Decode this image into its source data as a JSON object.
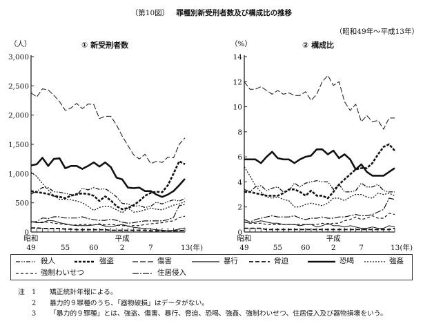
{
  "header": {
    "figure_no": "〔第10図〕",
    "title": "罪種別新受刑者数及び構成比の推移",
    "period": "（昭和49年～平成13年）"
  },
  "chart_data": [
    {
      "type": "line",
      "title": "① 新受刑者数",
      "ylabel": "（人）",
      "ylim": [
        0,
        3000
      ],
      "yticks": [
        "0",
        "500",
        "1,000",
        "1,500",
        "2,000",
        "2,500",
        "3,000"
      ],
      "ytick_values": [
        0,
        500,
        1000,
        1500,
        2000,
        2500,
        3000
      ],
      "x": [
        1974,
        1975,
        1976,
        1977,
        1978,
        1979,
        1980,
        1981,
        1982,
        1983,
        1984,
        1985,
        1986,
        1987,
        1988,
        1989,
        1990,
        1991,
        1992,
        1993,
        1994,
        1995,
        1996,
        1997,
        1998,
        1999,
        2000,
        2001
      ],
      "xtick_labels": [
        {
          "era": "昭和",
          "label": "49",
          "index": 0
        },
        {
          "era": "",
          "label": "55",
          "index": 6
        },
        {
          "era": "",
          "label": "60",
          "index": 11
        },
        {
          "era": "平成",
          "label": "2",
          "index": 16
        },
        {
          "era": "",
          "label": "7",
          "index": 21
        },
        {
          "era": "",
          "label": "13(年)",
          "index": 27
        }
      ],
      "series": [
        {
          "name": "殺人",
          "values": [
            650,
            700,
            760,
            760,
            690,
            680,
            660,
            640,
            620,
            750,
            720,
            760,
            730,
            740,
            680,
            600,
            490,
            480,
            440,
            450,
            420,
            440,
            510,
            480,
            520,
            550,
            530,
            570
          ]
        },
        {
          "name": "強盗",
          "values": [
            700,
            680,
            670,
            650,
            620,
            600,
            580,
            620,
            650,
            660,
            650,
            620,
            530,
            610,
            540,
            440,
            390,
            410,
            460,
            530,
            620,
            670,
            690,
            680,
            800,
            1000,
            1210,
            1160
          ]
        },
        {
          "name": "傷害",
          "values": [
            2380,
            2310,
            2450,
            2430,
            2340,
            2230,
            2080,
            2120,
            2200,
            2110,
            2190,
            2180,
            1940,
            1980,
            1980,
            1830,
            1640,
            1480,
            1320,
            1250,
            1330,
            1170,
            1210,
            1190,
            1280,
            1270,
            1500,
            1610
          ]
        },
        {
          "name": "暴行",
          "values": [
            180,
            160,
            160,
            200,
            190,
            160,
            140,
            120,
            110,
            110,
            110,
            120,
            130,
            100,
            90,
            110,
            130,
            100,
            80,
            70,
            60,
            50,
            40,
            30,
            20,
            30,
            50,
            70
          ]
        },
        {
          "name": "脅迫",
          "values": [
            70,
            70,
            60,
            60,
            60,
            60,
            50,
            50,
            40,
            40,
            40,
            40,
            40,
            40,
            30,
            30,
            30,
            30,
            30,
            30,
            30,
            20,
            20,
            20,
            20,
            20,
            20,
            30
          ]
        },
        {
          "name": "恐喝",
          "values": [
            1140,
            1160,
            1270,
            1130,
            1250,
            1260,
            1090,
            1130,
            1130,
            1080,
            1130,
            1190,
            1120,
            1190,
            1110,
            930,
            900,
            760,
            750,
            760,
            700,
            700,
            640,
            600,
            640,
            700,
            800,
            910
          ]
        },
        {
          "name": "強姦",
          "values": [
            1020,
            950,
            830,
            720,
            620,
            560,
            560,
            550,
            530,
            500,
            440,
            370,
            420,
            440,
            430,
            380,
            330,
            410,
            340,
            350,
            380,
            410,
            390,
            380,
            420,
            460,
            480,
            520
          ]
        },
        {
          "name": "強制わいせつ",
          "values": [
            180,
            160,
            170,
            170,
            150,
            140,
            130,
            120,
            120,
            130,
            130,
            120,
            140,
            120,
            130,
            120,
            110,
            100,
            110,
            110,
            130,
            140,
            150,
            160,
            180,
            190,
            250,
            270
          ]
        },
        {
          "name": "住居侵入",
          "values": [
            170,
            180,
            240,
            230,
            260,
            260,
            240,
            240,
            240,
            260,
            230,
            210,
            200,
            200,
            220,
            200,
            170,
            150,
            160,
            180,
            190,
            190,
            190,
            190,
            210,
            250,
            450,
            470
          ]
        }
      ]
    },
    {
      "type": "line",
      "title": "② 構成比",
      "ylabel": "（%）",
      "ylim": [
        0,
        14
      ],
      "yticks": [
        "0",
        "2",
        "4",
        "6",
        "8",
        "10",
        "12",
        "14"
      ],
      "ytick_values": [
        0,
        2,
        4,
        6,
        8,
        10,
        12,
        14
      ],
      "x": [
        1974,
        1975,
        1976,
        1977,
        1978,
        1979,
        1980,
        1981,
        1982,
        1983,
        1984,
        1985,
        1986,
        1987,
        1988,
        1989,
        1990,
        1991,
        1992,
        1993,
        1994,
        1995,
        1996,
        1997,
        1998,
        1999,
        2000,
        2001
      ],
      "xtick_labels": [
        {
          "era": "昭和",
          "label": "49",
          "index": 0
        },
        {
          "era": "",
          "label": "55",
          "index": 6
        },
        {
          "era": "",
          "label": "60",
          "index": 11
        },
        {
          "era": "平成",
          "label": "2",
          "index": 16
        },
        {
          "era": "",
          "label": "7",
          "index": 21
        },
        {
          "era": "",
          "label": "13(年)",
          "index": 27
        }
      ],
      "series": [
        {
          "name": "殺人",
          "values": [
            3.4,
            3.2,
            3.6,
            3.7,
            3.3,
            3.5,
            3.6,
            3.2,
            3.3,
            3.9,
            3.6,
            3.9,
            4.0,
            4.1,
            4.0,
            4.0,
            3.4,
            3.8,
            3.2,
            3.2,
            3.3,
            3.9,
            3.6,
            3.6,
            3.8,
            3.3,
            3.2,
            3.2
          ]
        },
        {
          "name": "強盗",
          "values": [
            3.2,
            3.2,
            3.1,
            3.0,
            2.9,
            2.9,
            2.9,
            3.1,
            3.4,
            3.4,
            3.2,
            2.9,
            3.3,
            2.9,
            2.9,
            2.7,
            3.2,
            3.8,
            4.2,
            4.6,
            5.0,
            5.1,
            5.1,
            5.5,
            6.2,
            6.8,
            7.0,
            6.5
          ]
        },
        {
          "name": "傷害",
          "values": [
            12.0,
            11.4,
            11.4,
            11.6,
            11.3,
            11.0,
            11.3,
            11.0,
            11.1,
            10.9,
            10.9,
            11.2,
            10.5,
            11.0,
            12.0,
            12.5,
            11.7,
            12.0,
            10.4,
            9.7,
            10.2,
            8.8,
            9.3,
            8.8,
            8.9,
            8.2,
            9.1,
            9.1
          ]
        },
        {
          "name": "暴行",
          "values": [
            0.8,
            0.7,
            0.8,
            0.9,
            0.8,
            0.7,
            0.7,
            0.6,
            0.6,
            0.6,
            0.5,
            0.6,
            0.6,
            0.4,
            0.5,
            0.7,
            0.5,
            0.5,
            0.4,
            0.5,
            0.4,
            0.3,
            0.3,
            0.4,
            0.3,
            0.3,
            0.5,
            0.4
          ]
        },
        {
          "name": "脅迫",
          "values": [
            0.3,
            0.3,
            0.3,
            0.3,
            0.2,
            0.2,
            0.2,
            0.2,
            0.2,
            0.2,
            0.2,
            0.2,
            0.2,
            0.2,
            0.2,
            0.2,
            0.2,
            0.2,
            0.2,
            0.2,
            0.2,
            0.2,
            0.2,
            0.2,
            0.2,
            0.2,
            0.2,
            0.3
          ]
        },
        {
          "name": "恐喝",
          "values": [
            5.8,
            5.8,
            5.8,
            5.5,
            6.0,
            6.4,
            5.9,
            5.8,
            5.8,
            5.5,
            5.8,
            6.0,
            6.1,
            6.6,
            6.6,
            6.2,
            6.5,
            5.9,
            6.2,
            5.8,
            5.0,
            5.4,
            4.8,
            4.5,
            4.5,
            4.5,
            4.8,
            5.1
          ]
        },
        {
          "name": "強姦",
          "values": [
            5.2,
            4.5,
            3.7,
            3.2,
            2.8,
            2.7,
            2.8,
            2.6,
            2.5,
            2.0,
            2.0,
            2.2,
            2.3,
            2.2,
            2.1,
            2.3,
            2.7,
            2.7,
            2.5,
            2.8,
            3.0,
            3.0,
            2.8,
            2.7,
            3.1,
            3.0,
            3.1,
            2.9
          ]
        },
        {
          "name": "強制わいせつ",
          "values": [
            0.8,
            0.7,
            0.7,
            0.7,
            0.6,
            0.6,
            0.6,
            0.6,
            0.6,
            0.6,
            0.6,
            0.6,
            0.6,
            0.6,
            0.7,
            0.6,
            0.7,
            0.7,
            0.9,
            1.0,
            1.2,
            1.0,
            1.1,
            1.3,
            1.1,
            1.1,
            1.5,
            1.4
          ]
        },
        {
          "name": "住居侵入",
          "values": [
            1.0,
            0.8,
            1.0,
            1.1,
            1.2,
            1.3,
            1.2,
            1.2,
            1.2,
            1.3,
            1.1,
            1.0,
            1.1,
            1.1,
            1.2,
            1.1,
            1.1,
            1.2,
            1.2,
            1.3,
            1.4,
            1.3,
            1.3,
            1.4,
            1.6,
            1.8,
            2.7,
            2.6
          ]
        }
      ]
    }
  ],
  "legend": [
    {
      "label": "殺人"
    },
    {
      "label": "強盗"
    },
    {
      "label": "傷害"
    },
    {
      "label": "暴行"
    },
    {
      "label": "脅迫"
    },
    {
      "label": "恐喝"
    },
    {
      "label": "強姦"
    },
    {
      "label": "強制わいせつ"
    },
    {
      "label": "住居侵入"
    }
  ],
  "notes": {
    "prefix": "注",
    "items": [
      {
        "no": "1",
        "text": "矯正統計年報による。"
      },
      {
        "no": "2",
        "text": "暴力的９罪種のうち、「器物破損」はデータがない。"
      },
      {
        "no": "3",
        "text": "「暴力的９罪種」とは、強盗、傷害、暴行、脅迫、恐喝、強姦、強制わいせつ、住居侵入及び器物損壊をいう。"
      }
    ]
  }
}
